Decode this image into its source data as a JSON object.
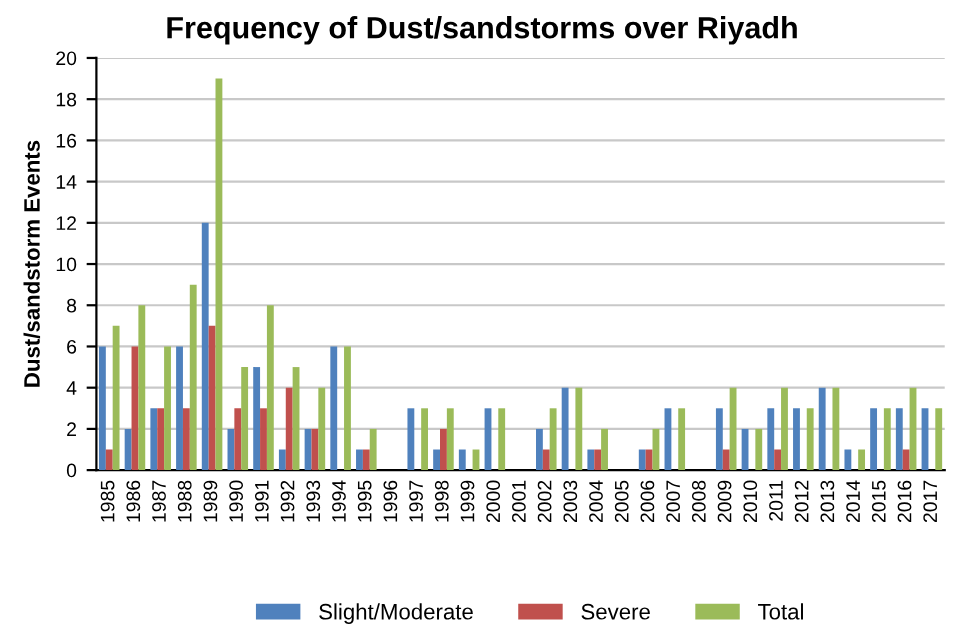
{
  "chart_data": {
    "type": "bar",
    "title": "Frequency of Dust/sandstorms over Riyadh",
    "ylabel": "Dust/sandstorm Events",
    "categories": [
      "1985",
      "1986",
      "1987",
      "1988",
      "1989",
      "1990",
      "1991",
      "1992",
      "1993",
      "1994",
      "1995",
      "1996",
      "1997",
      "1998",
      "1999",
      "2000",
      "2001",
      "2002",
      "2003",
      "2004",
      "2005",
      "2006",
      "2007",
      "2008",
      "2009",
      "2010",
      "2011",
      "2012",
      "2013",
      "2014",
      "2015",
      "2016",
      "2017"
    ],
    "series": [
      {
        "name": "Slight/Moderate",
        "color": "#4f81bd",
        "values": [
          6,
          2,
          3,
          6,
          12,
          2,
          5,
          1,
          2,
          6,
          1,
          0,
          3,
          1,
          1,
          3,
          0,
          2,
          4,
          1,
          0,
          1,
          3,
          0,
          3,
          2,
          3,
          3,
          4,
          1,
          3,
          3,
          3
        ]
      },
      {
        "name": "Severe",
        "color": "#c0504d",
        "values": [
          1,
          6,
          3,
          3,
          7,
          3,
          3,
          4,
          2,
          0,
          1,
          0,
          0,
          2,
          0,
          0,
          0,
          1,
          0,
          1,
          0,
          1,
          0,
          0,
          1,
          0,
          1,
          0,
          0,
          0,
          0,
          1,
          0
        ]
      },
      {
        "name": "Total",
        "color": "#9bbb59",
        "values": [
          7,
          8,
          6,
          9,
          19,
          5,
          8,
          5,
          4,
          6,
          2,
          0,
          3,
          3,
          1,
          3,
          0,
          3,
          4,
          2,
          0,
          2,
          3,
          0,
          4,
          2,
          4,
          3,
          4,
          1,
          3,
          4,
          3
        ]
      }
    ],
    "ylim": [
      0,
      20
    ],
    "yticks": [
      0,
      2,
      4,
      6,
      8,
      10,
      12,
      14,
      16,
      18,
      20
    ],
    "grid": "y",
    "legend": "bottom"
  }
}
